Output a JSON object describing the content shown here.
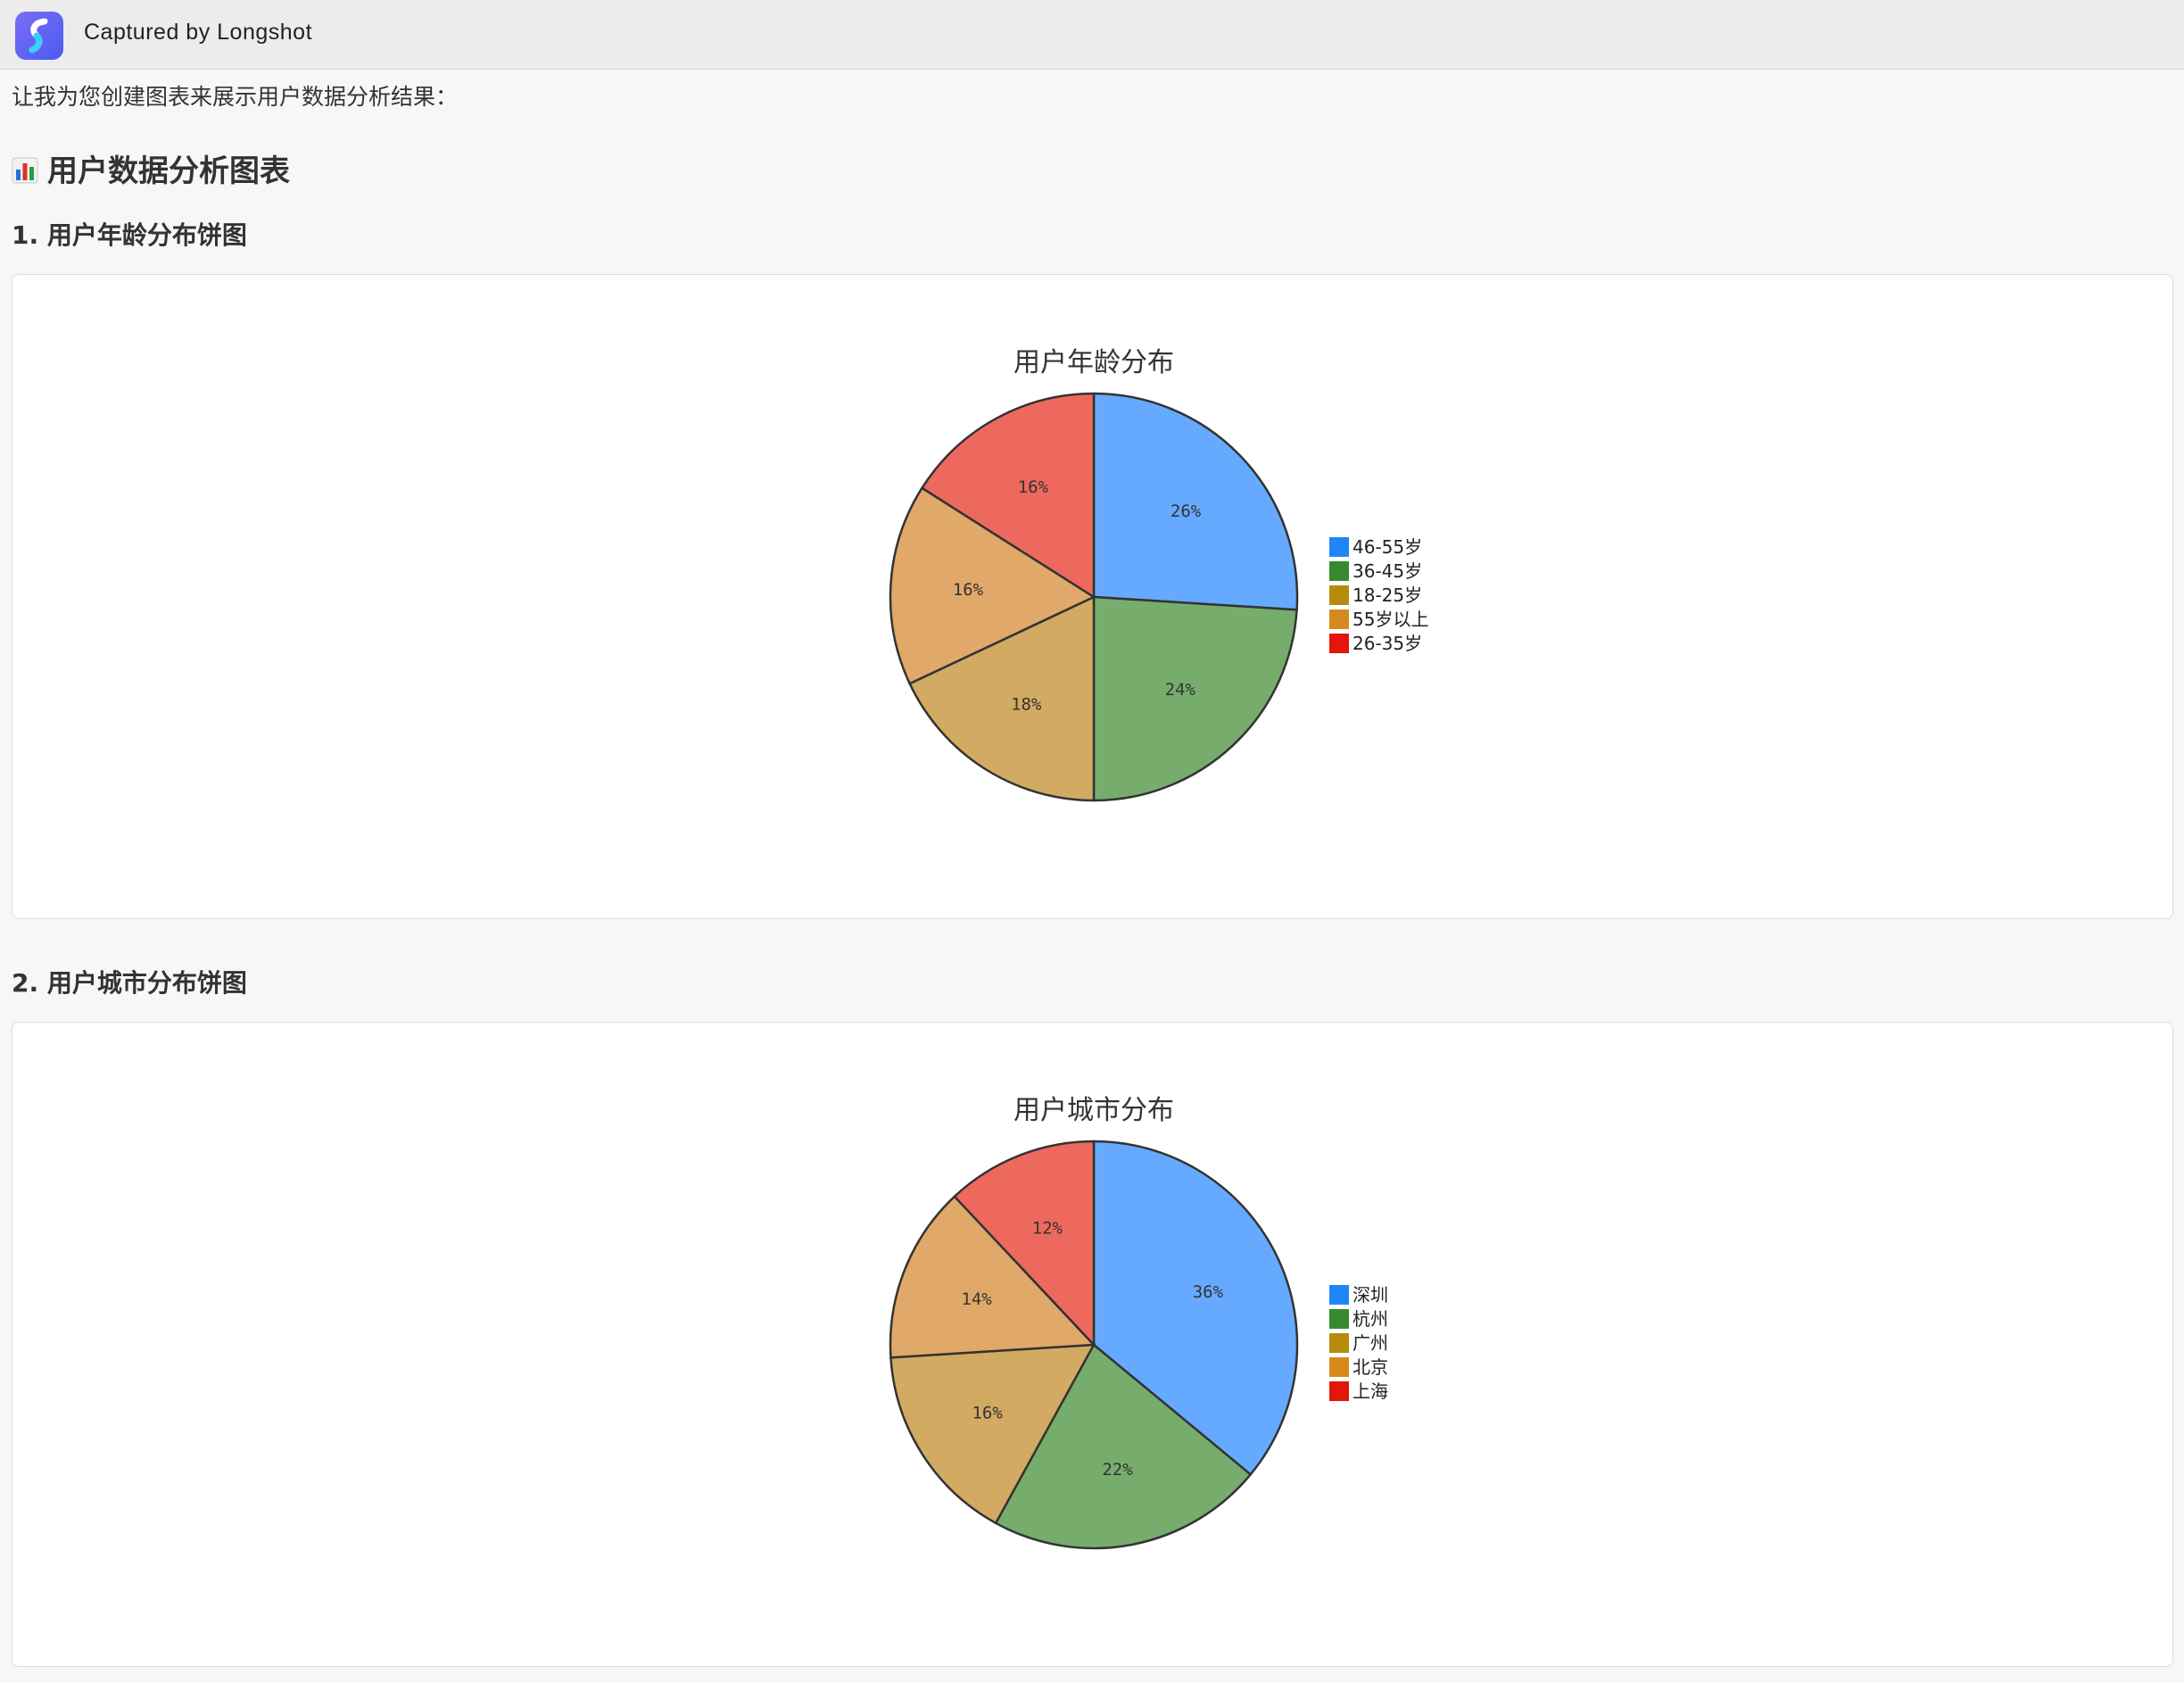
{
  "window": {
    "title": "Captured by Longshot",
    "icon": "longshot-app-icon"
  },
  "intro_text": "让我为您创建图表来展示用户数据分析结果：",
  "heading": {
    "icon": "bar-chart-icon",
    "text": "用户数据分析图表"
  },
  "sections": [
    {
      "title": "1. 用户年龄分布饼图"
    },
    {
      "title": "2. 用户城市分布饼图"
    }
  ],
  "colors": {
    "legend": [
      "#1f87f5",
      "#398a2f",
      "#b88a0c",
      "#d68a1d",
      "#e2160b"
    ],
    "slices": [
      "#66aaff",
      "#76ad6c",
      "#d2aa62",
      "#e0a869",
      "#ee695d"
    ],
    "stroke": "#333333"
  },
  "chart_data": [
    {
      "type": "pie",
      "title": "用户年龄分布",
      "categories": [
        "46-55岁",
        "36-45岁",
        "18-25岁",
        "55岁以上",
        "26-35岁"
      ],
      "values": [
        26,
        24,
        18,
        16,
        16
      ],
      "labels": [
        "26%",
        "24%",
        "18%",
        "16%",
        "16%"
      ],
      "start": "top, clockwise",
      "legend_position": "right"
    },
    {
      "type": "pie",
      "title": "用户城市分布",
      "categories": [
        "深圳",
        "杭州",
        "广州",
        "北京",
        "上海"
      ],
      "values": [
        36,
        22,
        16,
        14,
        12
      ],
      "labels": [
        "36%",
        "22%",
        "16%",
        "14%",
        "12%"
      ],
      "start": "top, clockwise",
      "legend_position": "right"
    }
  ]
}
